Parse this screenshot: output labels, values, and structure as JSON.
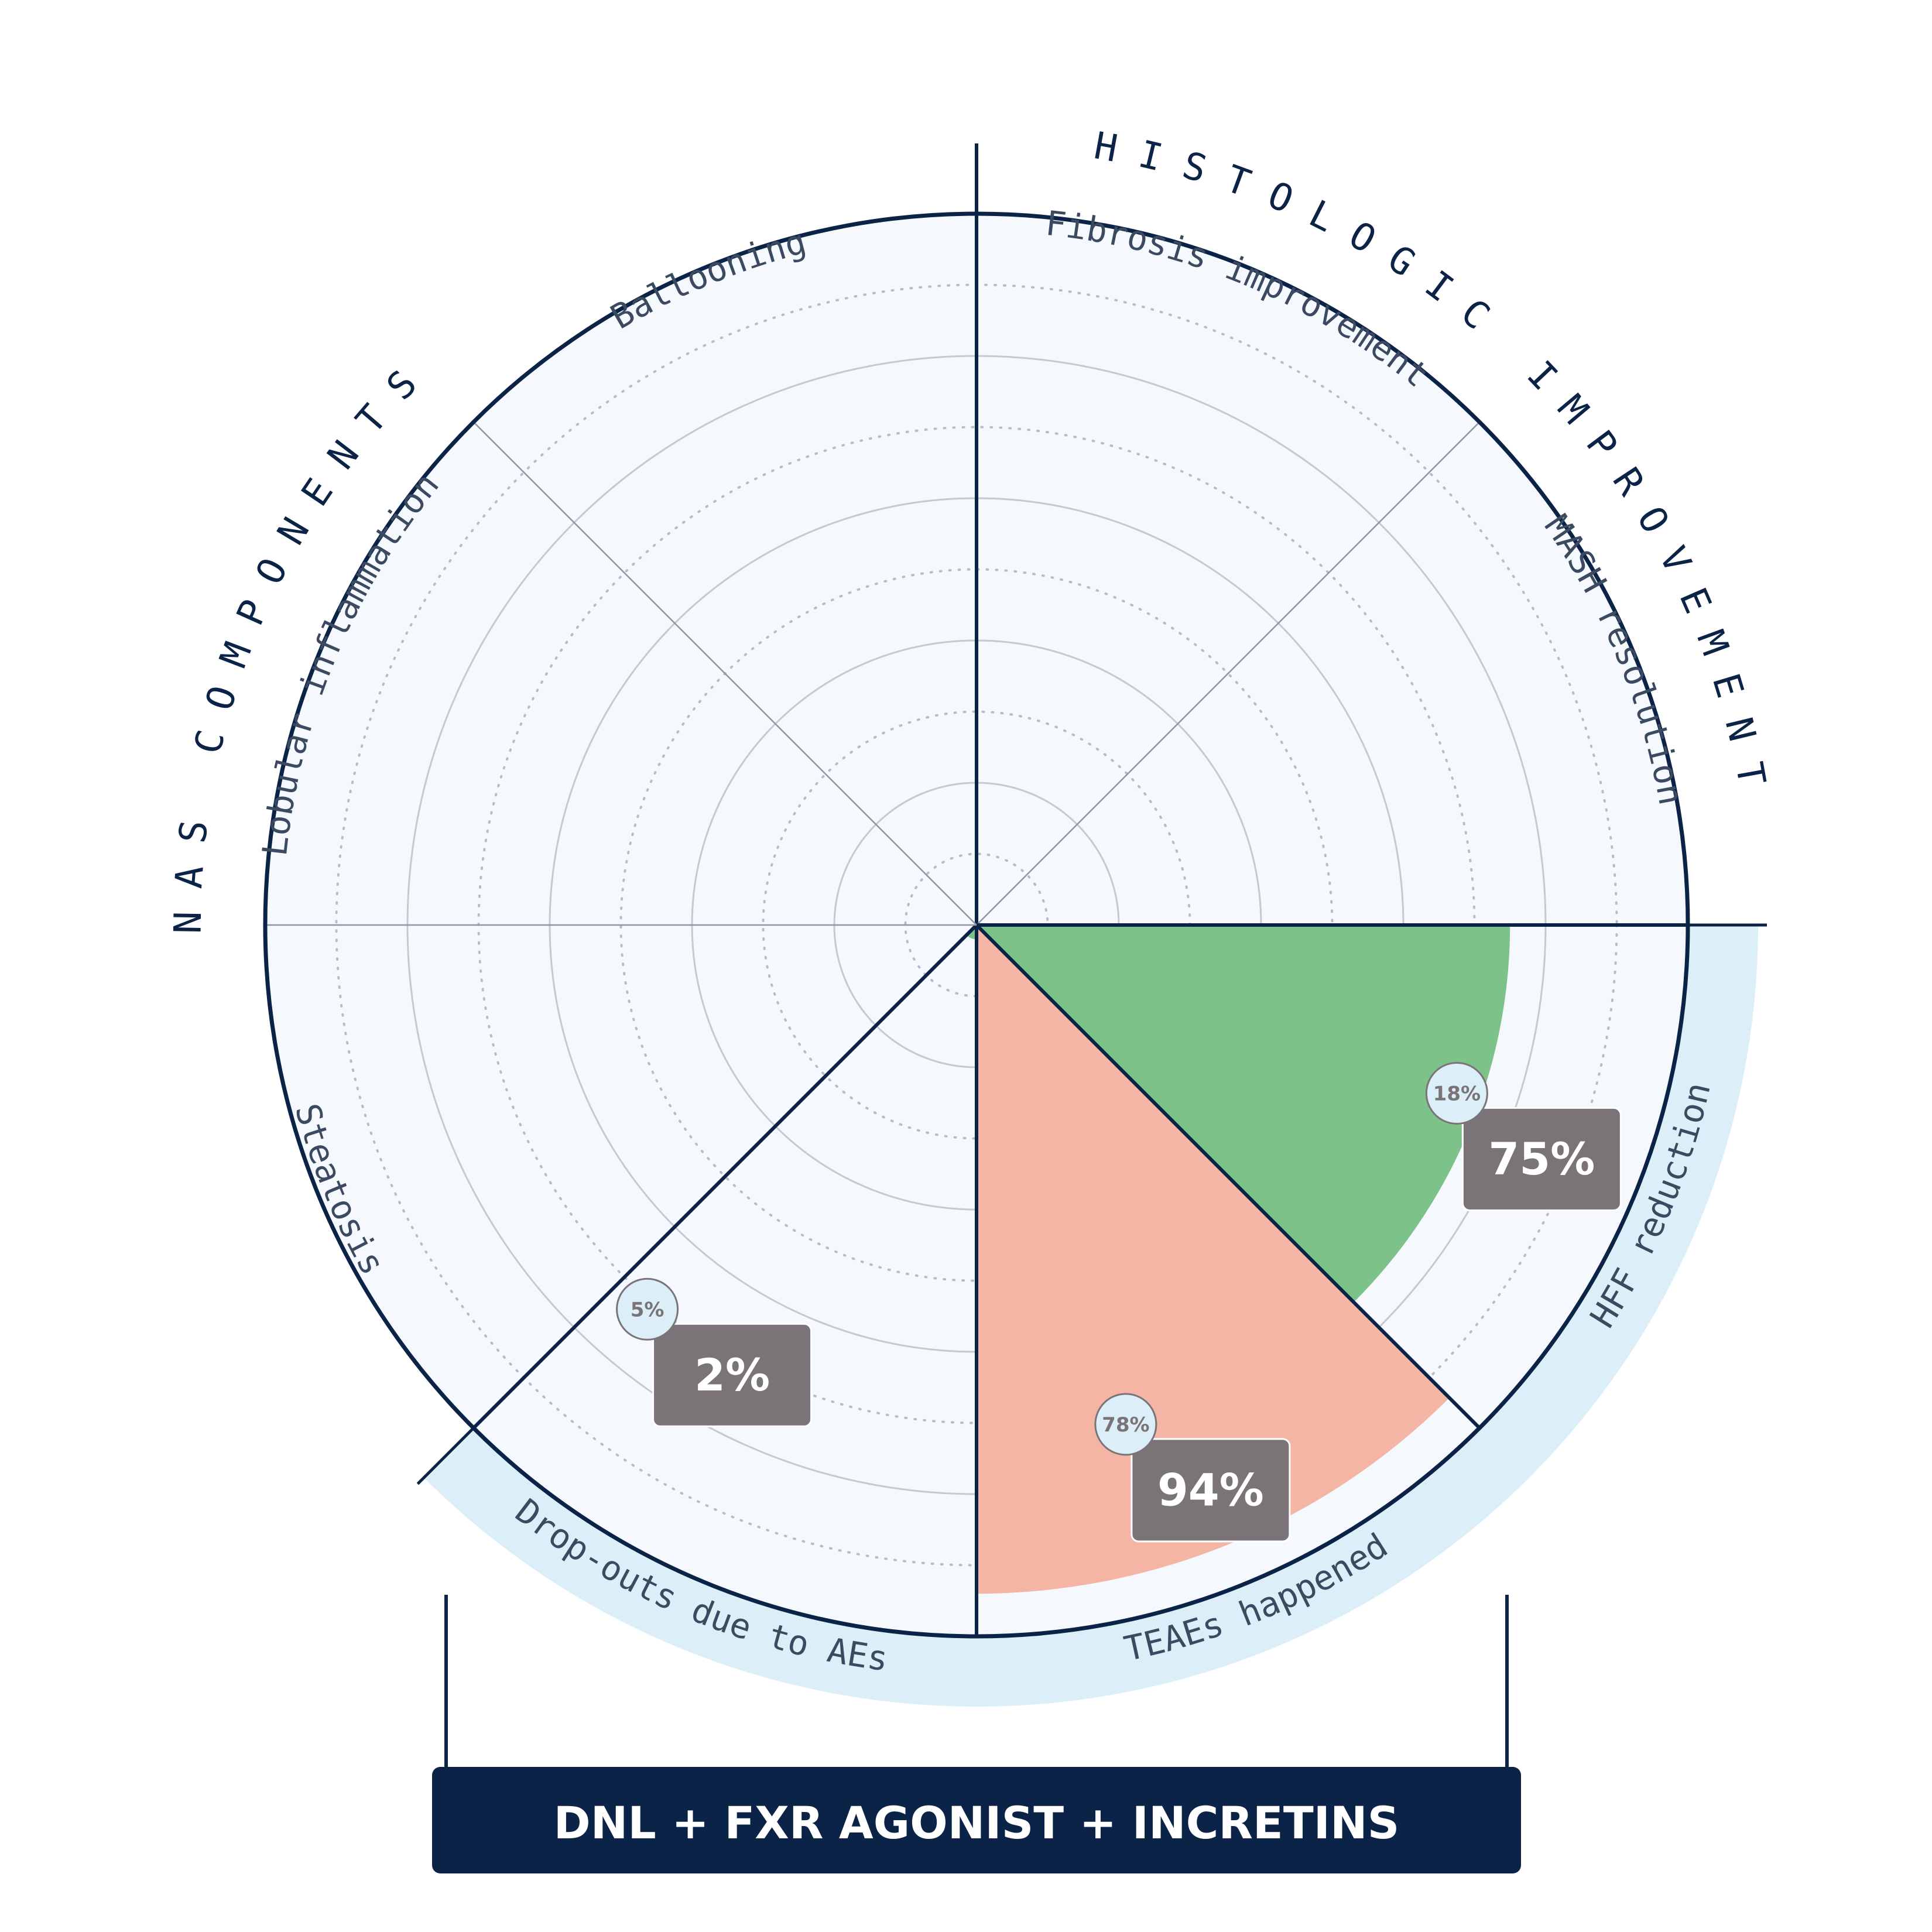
{
  "chart_data": {
    "type": "polar-bar",
    "max": 100,
    "rings": [
      20,
      40,
      60,
      80,
      100
    ],
    "groups": [
      {
        "label": "HISTOLOGIC IMPROVEMENT",
        "sectors": [
          "Fibrosis improvement",
          "MASH resolution"
        ]
      },
      {
        "label": "NAS COMPONENTS",
        "sectors": [
          "Ballooning",
          "Lobular inflammation",
          "Steatosis"
        ]
      }
    ],
    "sectors": [
      {
        "label": "Fibrosis improvement",
        "value": null,
        "secondary": null
      },
      {
        "label": "MASH resolution",
        "value": null,
        "secondary": null
      },
      {
        "label": "HFF reduction",
        "value": 75,
        "secondary": 18,
        "value_label": "75%",
        "secondary_label": "18%",
        "color": "#7dc288"
      },
      {
        "label": "TEAEs happened",
        "value": 94,
        "secondary": 78,
        "value_label": "94%",
        "secondary_label": "78%",
        "color": "#f4b5a4"
      },
      {
        "label": "Drop-outs due to AEs",
        "value": 2,
        "secondary": 5,
        "value_label": "2%",
        "secondary_label": "5%",
        "color": "#7dc288"
      },
      {
        "label": "Steatosis",
        "value": null,
        "secondary": null
      },
      {
        "label": "Lobular inflammation",
        "value": null,
        "secondary": null
      },
      {
        "label": "Ballooning",
        "value": null,
        "secondary": null
      }
    ],
    "highlight_band_color": "#dceef8",
    "plot_bg": "#f5f9fd",
    "axis_color": "#0b2347",
    "label_box_color": "#7a7478"
  },
  "footer": {
    "title": "DNL + FXR AGONIST + INCRETINS",
    "bg": "#0b2347"
  }
}
